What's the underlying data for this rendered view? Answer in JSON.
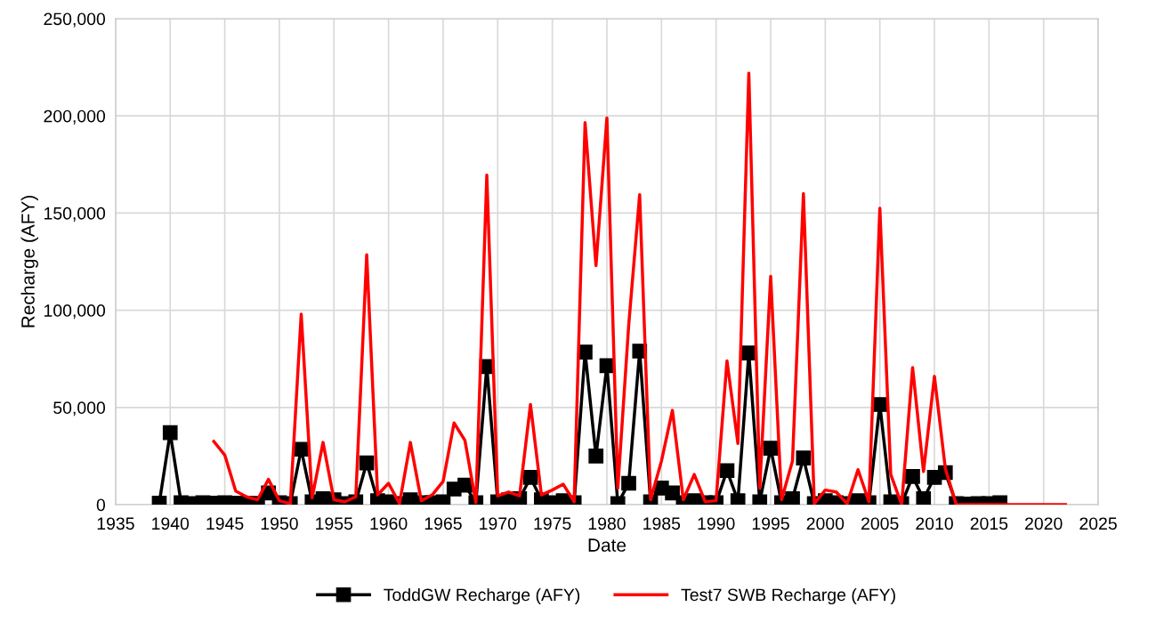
{
  "chart_data": {
    "type": "line",
    "xlabel": "Date",
    "ylabel": "Recharge (AFY)",
    "xlim": [
      1935,
      2025
    ],
    "xticks": [
      1935,
      1940,
      1945,
      1950,
      1955,
      1960,
      1965,
      1970,
      1975,
      1980,
      1985,
      1990,
      1995,
      2000,
      2005,
      2010,
      2015,
      2020,
      2025
    ],
    "ylim": [
      0,
      250000
    ],
    "yticks": [
      {
        "value": 0,
        "label": "0"
      },
      {
        "value": 50000,
        "label": "50,000"
      },
      {
        "value": 100000,
        "label": "100,000"
      },
      {
        "value": 150000,
        "label": "150,000"
      },
      {
        "value": 200000,
        "label": "200,000"
      },
      {
        "value": 250000,
        "label": "250,000"
      }
    ],
    "grid": true,
    "legend": "bottom",
    "series": [
      {
        "name": "ToddGW Recharge (AFY)",
        "color": "#000000",
        "marker": "square",
        "x": [
          1939,
          1940,
          1941,
          1942,
          1943,
          1944,
          1945,
          1946,
          1947,
          1948,
          1949,
          1950,
          1951,
          1952,
          1953,
          1954,
          1955,
          1956,
          1957,
          1958,
          1959,
          1960,
          1961,
          1962,
          1963,
          1964,
          1965,
          1966,
          1967,
          1968,
          1969,
          1970,
          1971,
          1972,
          1973,
          1974,
          1975,
          1976,
          1977,
          1978,
          1979,
          1980,
          1981,
          1982,
          1983,
          1984,
          1985,
          1986,
          1987,
          1988,
          1989,
          1990,
          1991,
          1992,
          1993,
          1994,
          1995,
          1996,
          1997,
          1998,
          1999,
          2000,
          2001,
          2002,
          2003,
          2004,
          2005,
          2006,
          2007,
          2008,
          2009,
          2010,
          2011,
          2012,
          2013,
          2014,
          2015,
          2016
        ],
        "values": [
          800,
          37000,
          1000,
          500,
          1000,
          800,
          1000,
          800,
          500,
          600,
          6000,
          1000,
          500,
          28500,
          1500,
          3000,
          2500,
          500,
          1500,
          21500,
          2000,
          1500,
          500,
          2500,
          1000,
          1000,
          1500,
          8000,
          10000,
          1000,
          71000,
          1500,
          2500,
          3000,
          14000,
          2500,
          1000,
          2000,
          1000,
          78500,
          25000,
          71500,
          500,
          11000,
          79000,
          1500,
          8500,
          6000,
          1000,
          2000,
          1000,
          1000,
          17500,
          2000,
          78000,
          1500,
          29000,
          1000,
          3000,
          24000,
          500,
          2000,
          1000,
          500,
          2000,
          1000,
          51500,
          1500,
          500,
          14500,
          3000,
          14000,
          16500,
          500,
          300,
          500,
          500,
          1000
        ]
      },
      {
        "name": "Test7 SWB Recharge (AFY)",
        "color": "#ff0000",
        "marker": "none",
        "x": [
          1944,
          1945,
          1946,
          1947,
          1948,
          1949,
          1950,
          1951,
          1952,
          1953,
          1954,
          1955,
          1956,
          1957,
          1958,
          1959,
          1960,
          1961,
          1962,
          1963,
          1964,
          1965,
          1966,
          1967,
          1968,
          1969,
          1970,
          1971,
          1972,
          1973,
          1974,
          1975,
          1976,
          1977,
          1978,
          1979,
          1980,
          1981,
          1982,
          1983,
          1984,
          1985,
          1986,
          1987,
          1988,
          1989,
          1990,
          1991,
          1992,
          1993,
          1994,
          1995,
          1996,
          1997,
          1998,
          1999,
          2000,
          2001,
          2002,
          2003,
          2004,
          2005,
          2006,
          2007,
          2008,
          2009,
          2010,
          2011,
          2012,
          2013,
          2014,
          2015,
          2016,
          2017,
          2018,
          2019,
          2020,
          2021,
          2022
        ],
        "values": [
          32500,
          25500,
          7000,
          4000,
          2500,
          13000,
          2000,
          500,
          98000,
          3500,
          32000,
          2500,
          1500,
          4000,
          128500,
          5000,
          11000,
          500,
          32000,
          2000,
          5000,
          12000,
          42000,
          33000,
          1000,
          169500,
          4500,
          6500,
          4500,
          51500,
          5000,
          7500,
          10500,
          1500,
          196500,
          123000,
          199000,
          8500,
          92500,
          159500,
          2500,
          22500,
          48500,
          2500,
          15500,
          1500,
          2000,
          74000,
          31500,
          222000,
          8500,
          117500,
          2500,
          22500,
          160000,
          500,
          7500,
          6500,
          500,
          18000,
          1500,
          152500,
          15500,
          0,
          70500,
          17000,
          66000,
          18500,
          0,
          0,
          0,
          0,
          0,
          0,
          0,
          0,
          0,
          0,
          0
        ]
      }
    ]
  }
}
